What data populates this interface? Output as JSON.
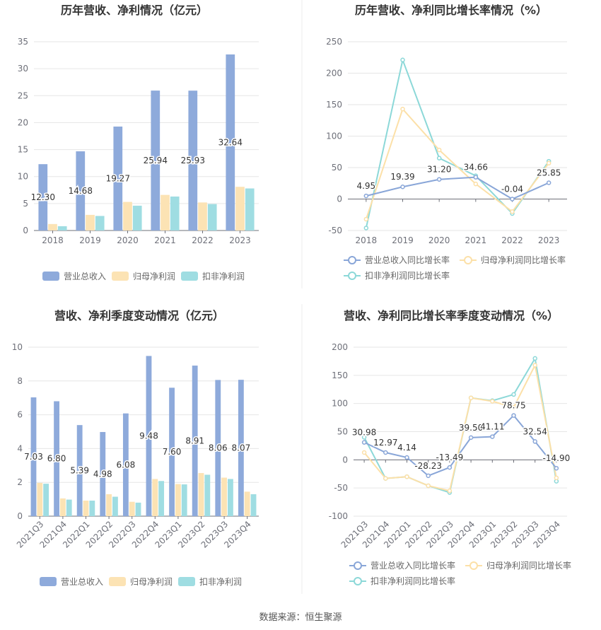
{
  "footer": {
    "source_label": "数据来源：",
    "source_value": "恒生聚源"
  },
  "colors": {
    "revenue": "#8EAADB",
    "net_profit": "#FCE3B4",
    "deducted_profit": "#9FDDE2",
    "line_revenue": "#89A6D8",
    "line_net_profit": "#FCE0A8",
    "line_deducted": "#8CD8D8",
    "grid": "#E6E6E6",
    "axis_text": "#6E7079",
    "title": "#333333"
  },
  "chart_data": [
    {
      "id": "annual-bar",
      "type": "bar",
      "title": "历年营收、净利情况（亿元）",
      "categories": [
        "2018",
        "2019",
        "2020",
        "2021",
        "2022",
        "2023"
      ],
      "ylim": [
        0,
        35
      ],
      "yticks": [
        0,
        5,
        10,
        15,
        20,
        25,
        30,
        35
      ],
      "grid": true,
      "legend_position": "bottom",
      "series": [
        {
          "name": "营业总收入",
          "values": [
            12.3,
            14.68,
            19.27,
            25.94,
            25.93,
            32.64
          ],
          "labels": [
            "12.30",
            "14.68",
            "19.27",
            "25.94",
            "25.93",
            "32.64"
          ]
        },
        {
          "name": "归母净利润",
          "values": [
            1.2,
            2.9,
            5.3,
            6.6,
            5.2,
            8.1
          ]
        },
        {
          "name": "扣非净利润",
          "values": [
            0.8,
            2.7,
            4.6,
            6.3,
            4.9,
            7.8
          ]
        }
      ]
    },
    {
      "id": "annual-line",
      "type": "line",
      "title": "历年营收、净利同比增长率情况（%）",
      "categories": [
        "2018",
        "2019",
        "2020",
        "2021",
        "2022",
        "2023"
      ],
      "ylim": [
        -50,
        250
      ],
      "yticks": [
        -50,
        0,
        50,
        100,
        150,
        200,
        250
      ],
      "grid": true,
      "legend_position": "bottom",
      "series": [
        {
          "name": "营业总收入同比增长率",
          "values": [
            4.95,
            19.39,
            31.2,
            34.66,
            -0.04,
            25.85
          ],
          "labels": [
            "4.95",
            "19.39",
            "31.20",
            "34.66",
            "-0.04",
            "25.85"
          ]
        },
        {
          "name": "归母净利润同比增长率",
          "values": [
            -32,
            143,
            78,
            24,
            -20,
            57
          ]
        },
        {
          "name": "扣非净利润同比增长率",
          "values": [
            -46,
            221,
            65,
            37,
            -23,
            60
          ]
        }
      ]
    },
    {
      "id": "quarterly-bar",
      "type": "bar",
      "title": "营收、净利季度变动情况（亿元）",
      "categories": [
        "2021Q3",
        "2021Q4",
        "2022Q1",
        "2022Q2",
        "2022Q3",
        "2022Q4",
        "2023Q1",
        "2023Q2",
        "2023Q3",
        "2023Q4"
      ],
      "ylim": [
        0,
        10
      ],
      "yticks": [
        0,
        2,
        4,
        6,
        8,
        10
      ],
      "grid": true,
      "legend_position": "bottom",
      "series": [
        {
          "name": "营业总收入",
          "values": [
            7.03,
            6.8,
            5.39,
            4.98,
            6.08,
            9.48,
            7.6,
            8.91,
            8.06,
            8.07
          ],
          "labels": [
            "7.03",
            "6.80",
            "5.39",
            "4.98",
            "6.08",
            "9.48",
            "7.60",
            "8.91",
            "8.06",
            "8.07"
          ]
        },
        {
          "name": "归母净利润",
          "values": [
            1.97,
            1.05,
            0.92,
            1.3,
            0.85,
            2.2,
            1.9,
            2.55,
            2.28,
            1.45
          ]
        },
        {
          "name": "扣非净利润",
          "values": [
            1.92,
            0.98,
            0.92,
            1.15,
            0.8,
            2.08,
            1.88,
            2.45,
            2.2,
            1.3
          ]
        }
      ]
    },
    {
      "id": "quarterly-line",
      "type": "line",
      "title": "营收、净利同比增长率季度变动情况（%）",
      "categories": [
        "2021Q3",
        "2021Q4",
        "2022Q1",
        "2022Q2",
        "2022Q3",
        "2022Q4",
        "2023Q1",
        "2023Q2",
        "2023Q3",
        "2023Q4"
      ],
      "ylim": [
        -100,
        200
      ],
      "yticks": [
        -100,
        -50,
        0,
        50,
        100,
        150,
        200
      ],
      "grid": true,
      "legend_position": "bottom",
      "series": [
        {
          "name": "营业总收入同比增长率",
          "values": [
            30.98,
            12.97,
            4.14,
            -28.23,
            -13.49,
            39.5,
            41.11,
            78.75,
            32.54,
            -14.9
          ],
          "labels": [
            "30.98",
            "12.97",
            "4.14",
            "-28.23",
            "-13.49",
            "39.50",
            "41.11",
            "78.75",
            "32.54",
            "-14.90"
          ]
        },
        {
          "name": "归母净利润同比增长率",
          "values": [
            13,
            -33,
            -30,
            -46,
            -55,
            110,
            104,
            93,
            168,
            -32
          ]
        },
        {
          "name": "扣非净利润同比增长率",
          "values": [
            40,
            -33,
            -30,
            -46,
            -58,
            110,
            105,
            116,
            180,
            -38
          ]
        }
      ]
    }
  ]
}
